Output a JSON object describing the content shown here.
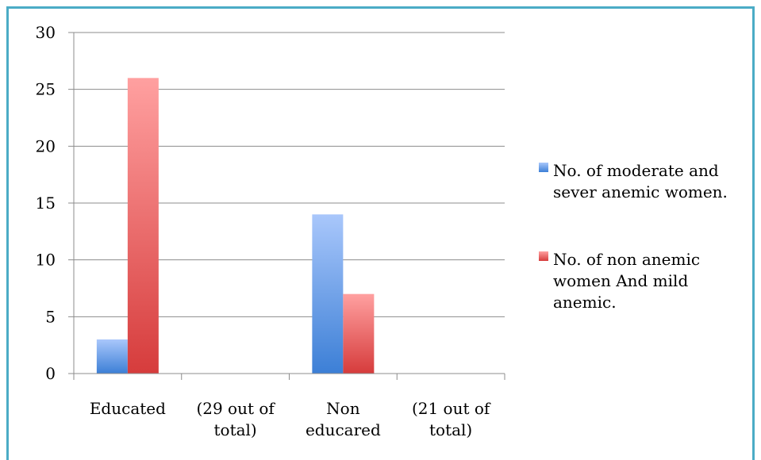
{
  "chart_data": {
    "type": "bar",
    "categories": [
      [
        "Educated"
      ],
      [
        "(29 out of",
        "total)"
      ],
      [
        "Non",
        "educared"
      ],
      [
        "(21 out of",
        "total)"
      ]
    ],
    "series": [
      {
        "name": [
          "No. of moderate and",
          "sever anemic women."
        ],
        "values": [
          3,
          null,
          14,
          null
        ],
        "color_top": "#a9c7fb",
        "color_bottom": "#3c7fd6"
      },
      {
        "name": [
          "No. of non anemic",
          "women And mild",
          "anemic."
        ],
        "values": [
          26,
          null,
          7,
          null
        ],
        "color_top": "#ffa0a0",
        "color_bottom": "#d63c3c"
      }
    ],
    "yticks": [
      0,
      5,
      10,
      15,
      20,
      25,
      30
    ],
    "ylim": [
      0,
      30
    ],
    "grid": true,
    "legend_position": "right",
    "title": "",
    "xlabel": "",
    "ylabel": ""
  }
}
